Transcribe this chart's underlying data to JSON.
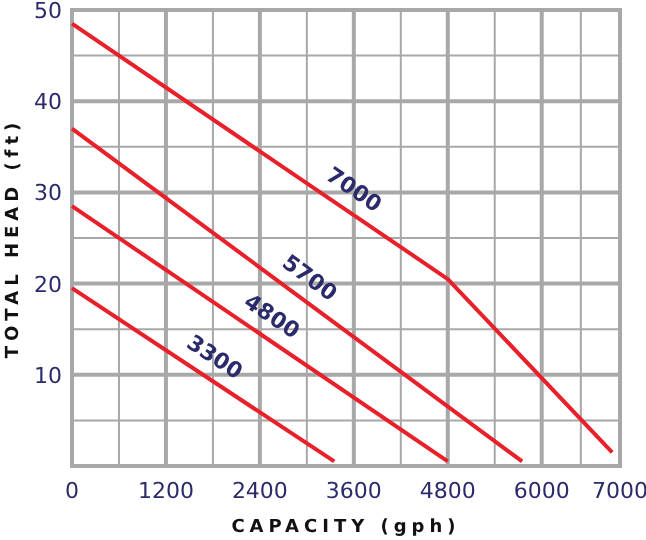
{
  "chart_data": {
    "type": "line",
    "xlabel": "CAPACITY (gph)",
    "ylabel": "TOTAL HEAD (ft)",
    "xlim": [
      0,
      7000
    ],
    "xticks": [
      0,
      {
        "value": 600,
        "label": null
      },
      1200,
      {
        "value": 1800,
        "label": null
      },
      2400,
      {
        "value": 3000,
        "label": null
      },
      3600,
      {
        "value": 4200,
        "label": null
      },
      4800,
      {
        "value": 5400,
        "label": null
      },
      6000,
      {
        "value": 6500,
        "label": null
      },
      7000
    ],
    "ylim": [
      0,
      50
    ],
    "yticks": [
      {
        "value": 0,
        "label": null
      },
      {
        "value": 5,
        "label": null
      },
      10,
      {
        "value": 15,
        "label": null
      },
      20,
      {
        "value": 25,
        "label": null
      },
      30,
      {
        "value": 35,
        "label": null
      },
      40,
      {
        "value": 45,
        "label": null
      },
      50
    ],
    "grid": true,
    "marker": "none",
    "line_style": "solid",
    "series": [
      {
        "name": "7000",
        "color": "#e8202a",
        "x": [
          0,
          4800,
          6900
        ],
        "values": [
          48.5,
          20.5,
          1.5
        ]
      },
      {
        "name": "5700",
        "color": "#e8202a",
        "x": [
          0,
          5750
        ],
        "values": [
          37,
          0.5
        ]
      },
      {
        "name": "4800",
        "color": "#e8202a",
        "x": [
          0,
          4800
        ],
        "values": [
          28.5,
          0.5
        ]
      },
      {
        "name": "3300",
        "color": "#e8202a",
        "x": [
          0,
          3350
        ],
        "values": [
          19.5,
          0.5
        ]
      }
    ]
  }
}
